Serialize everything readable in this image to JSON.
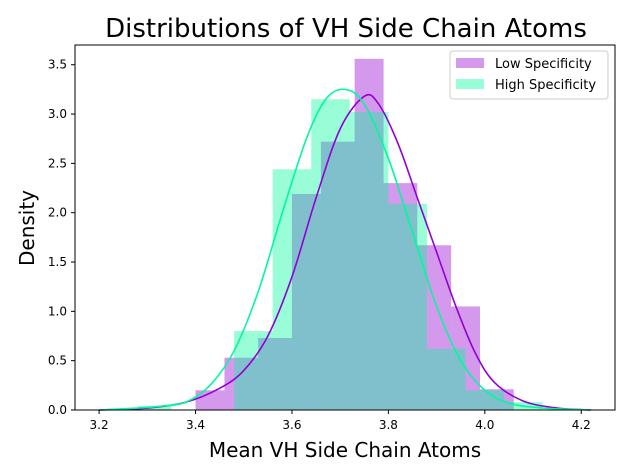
{
  "chart_data": {
    "type": "histogram",
    "title": "Distributions of VH Side Chain Atoms",
    "xlabel": "Mean VH Side Chain Atoms",
    "ylabel": "Density",
    "xlim": [
      3.15,
      4.27
    ],
    "ylim": [
      0,
      3.7
    ],
    "xticks": [
      "3.2",
      "3.4",
      "3.6",
      "3.8",
      "4.0",
      "4.2"
    ],
    "yticks": [
      "0.0",
      "0.5",
      "1.0",
      "1.5",
      "2.0",
      "2.5",
      "3.0",
      "3.5"
    ],
    "legend": {
      "placement": "top-right"
    },
    "series": [
      {
        "name": "Low Specificity",
        "color": "#9400d3",
        "bins": [
          {
            "x0": 3.4,
            "x1": 3.46,
            "y": 0.2
          },
          {
            "x0": 3.46,
            "x1": 3.53,
            "y": 0.53
          },
          {
            "x0": 3.53,
            "x1": 3.6,
            "y": 0.73
          },
          {
            "x0": 3.6,
            "x1": 3.66,
            "y": 2.19
          },
          {
            "x0": 3.66,
            "x1": 3.73,
            "y": 2.72
          },
          {
            "x0": 3.73,
            "x1": 3.79,
            "y": 3.56
          },
          {
            "x0": 3.79,
            "x1": 3.86,
            "y": 2.3
          },
          {
            "x0": 3.86,
            "x1": 3.93,
            "y": 1.67
          },
          {
            "x0": 3.93,
            "x1": 3.99,
            "y": 1.05
          },
          {
            "x0": 3.99,
            "x1": 4.06,
            "y": 0.21
          }
        ],
        "kde": [
          [
            3.2,
            0.0
          ],
          [
            3.3,
            0.02
          ],
          [
            3.38,
            0.08
          ],
          [
            3.45,
            0.22
          ],
          [
            3.5,
            0.4
          ],
          [
            3.55,
            0.75
          ],
          [
            3.6,
            1.35
          ],
          [
            3.65,
            2.15
          ],
          [
            3.7,
            2.85
          ],
          [
            3.75,
            3.18
          ],
          [
            3.78,
            3.1
          ],
          [
            3.82,
            2.7
          ],
          [
            3.86,
            2.15
          ],
          [
            3.9,
            1.6
          ],
          [
            3.94,
            1.05
          ],
          [
            3.98,
            0.58
          ],
          [
            4.02,
            0.28
          ],
          [
            4.08,
            0.09
          ],
          [
            4.15,
            0.02
          ],
          [
            4.22,
            0.0
          ]
        ]
      },
      {
        "name": "High Specificity",
        "color": "#00fa9a",
        "bins": [
          {
            "x0": 3.28,
            "x1": 3.35,
            "y": 0.04
          },
          {
            "x0": 3.48,
            "x1": 3.56,
            "y": 0.8
          },
          {
            "x0": 3.56,
            "x1": 3.64,
            "y": 2.44
          },
          {
            "x0": 3.64,
            "x1": 3.72,
            "y": 3.15
          },
          {
            "x0": 3.72,
            "x1": 3.8,
            "y": 3.02
          },
          {
            "x0": 3.8,
            "x1": 3.88,
            "y": 2.09
          },
          {
            "x0": 3.88,
            "x1": 3.96,
            "y": 0.62
          },
          {
            "x0": 3.96,
            "x1": 4.04,
            "y": 0.2
          },
          {
            "x0": 4.04,
            "x1": 4.12,
            "y": 0.08
          }
        ],
        "kde": [
          [
            3.2,
            0.0
          ],
          [
            3.28,
            0.02
          ],
          [
            3.33,
            0.04
          ],
          [
            3.38,
            0.08
          ],
          [
            3.43,
            0.25
          ],
          [
            3.48,
            0.6
          ],
          [
            3.53,
            1.2
          ],
          [
            3.58,
            2.0
          ],
          [
            3.63,
            2.75
          ],
          [
            3.67,
            3.15
          ],
          [
            3.71,
            3.25
          ],
          [
            3.75,
            3.1
          ],
          [
            3.8,
            2.55
          ],
          [
            3.85,
            1.8
          ],
          [
            3.9,
            1.05
          ],
          [
            3.95,
            0.5
          ],
          [
            4.0,
            0.2
          ],
          [
            4.05,
            0.07
          ],
          [
            4.12,
            0.02
          ],
          [
            4.22,
            0.0
          ]
        ]
      }
    ]
  }
}
